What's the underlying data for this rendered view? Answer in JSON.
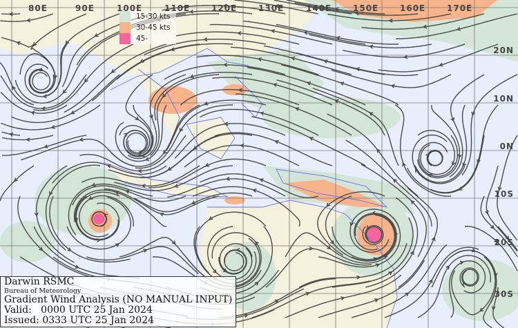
{
  "colors": {
    "ocean": "#e8eefb",
    "land": "#f4f1dc",
    "coast": "#6b73f0",
    "band_15_30": "#d2e5d6",
    "band_30_45": "#f7b48a",
    "band_45": "#f5649c",
    "streamline": "#4a4a4a",
    "grid": "#777777"
  },
  "lon_labels": [
    "80E",
    "90E",
    "100E",
    "110E",
    "120E",
    "130E",
    "140E",
    "150E",
    "160E",
    "170E"
  ],
  "lat_labels": [
    "20N",
    "10N",
    "0N",
    "10S",
    "20S",
    "30S"
  ],
  "legend": [
    {
      "label": "15-30 kts",
      "color": "#d2e5d6"
    },
    {
      "label": "30-45 kts",
      "color": "#f7b48a"
    },
    {
      "label": "45-",
      "color": "#f5649c"
    }
  ],
  "title": {
    "org": "Darwin RSMC",
    "agency": "Bureau of Meteorology",
    "product": "Gradient Wind Analysis (NO MANUAL INPUT)",
    "valid": "Valid:   0000 UTC 25 Jan 2024",
    "issued": "Issued: 0333 UTC 25 Jan 2024"
  }
}
